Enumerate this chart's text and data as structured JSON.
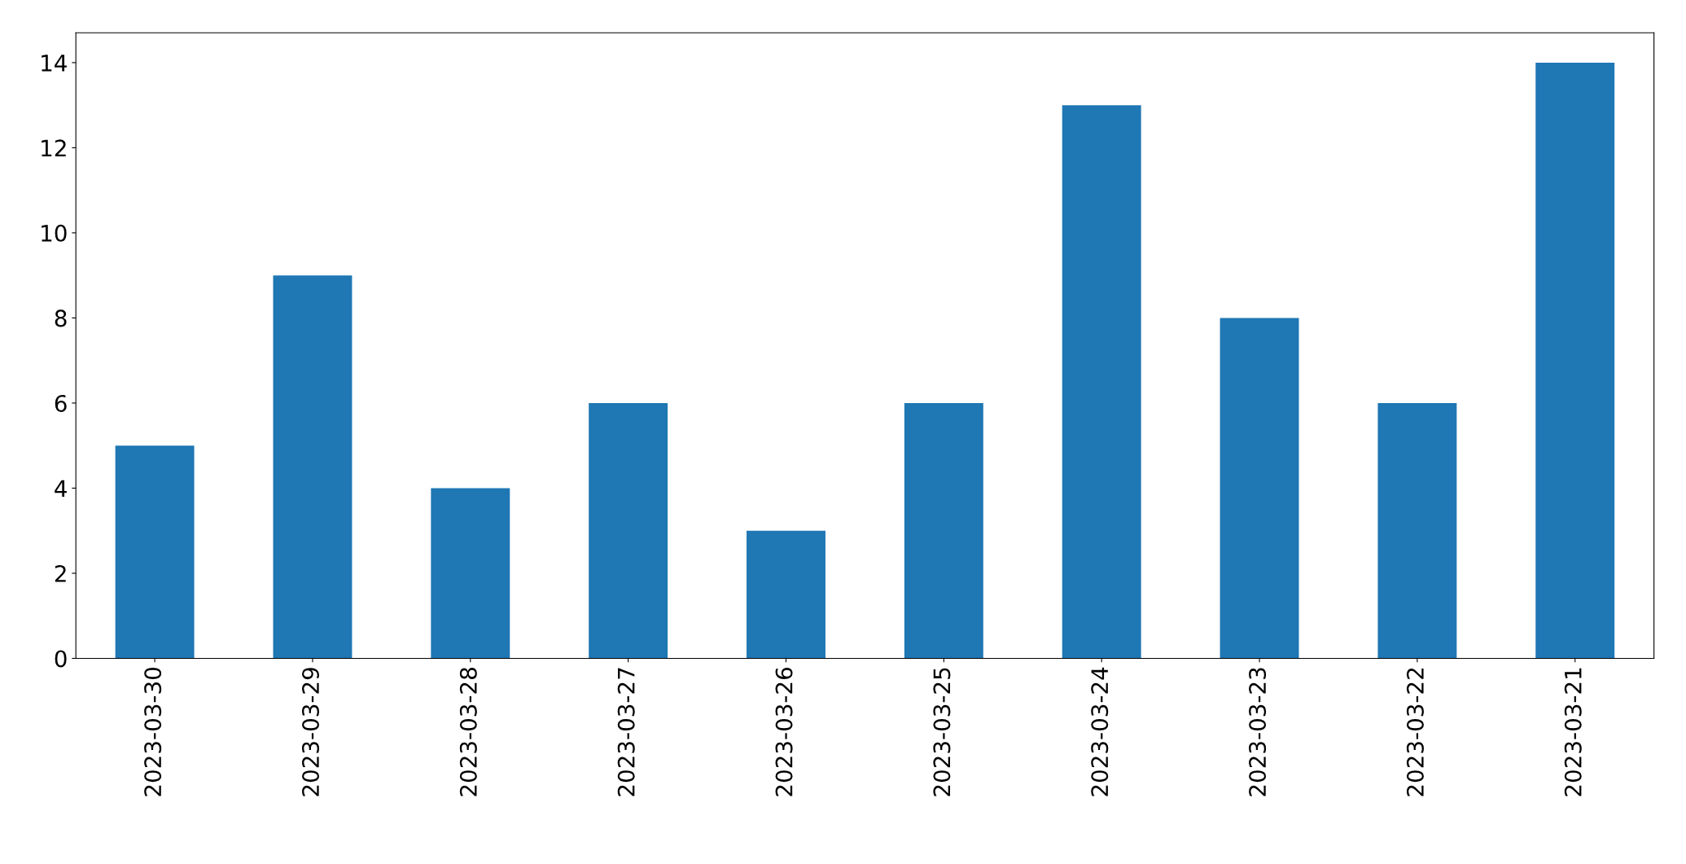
{
  "chart_data": {
    "type": "bar",
    "categories": [
      "2023-03-30",
      "2023-03-29",
      "2023-03-28",
      "2023-03-27",
      "2023-03-26",
      "2023-03-25",
      "2023-03-24",
      "2023-03-23",
      "2023-03-22",
      "2023-03-21"
    ],
    "values": [
      5,
      9,
      4,
      6,
      3,
      6,
      13,
      8,
      6,
      14
    ],
    "color": "#1f77b4",
    "ylim": [
      0,
      14.7
    ],
    "yticks": [
      0,
      2,
      4,
      6,
      8,
      10,
      12,
      14
    ],
    "grid": false,
    "legend": false
  }
}
